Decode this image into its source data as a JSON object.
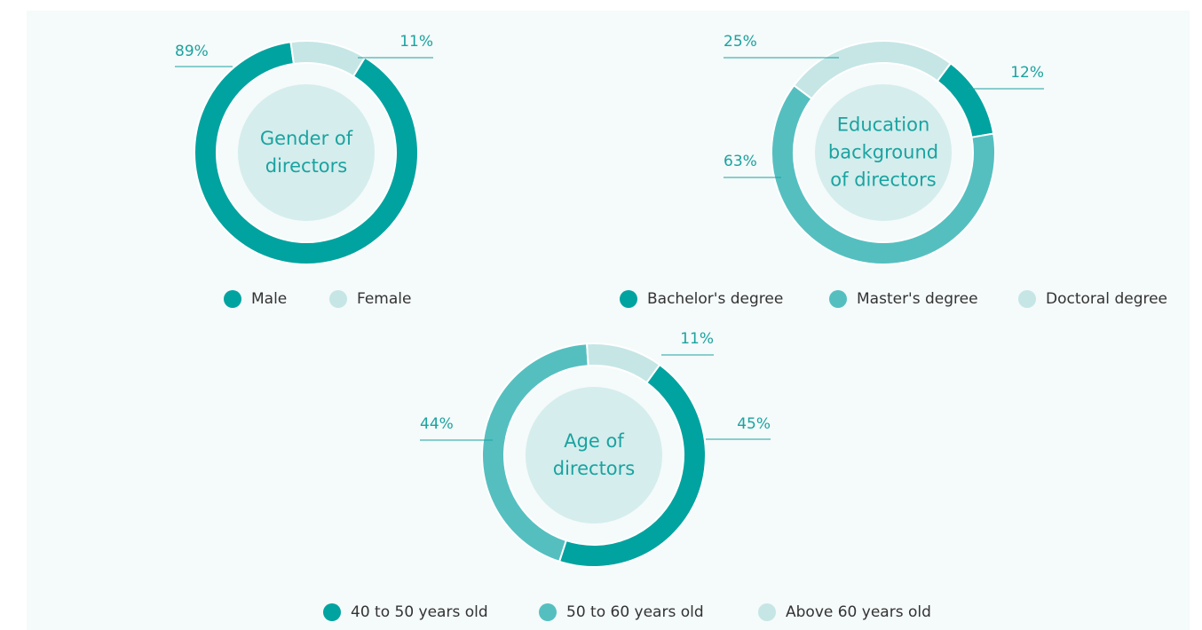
{
  "chart_data": [
    {
      "type": "pie",
      "title": "Gender of directors",
      "categories": [
        "Male",
        "Female"
      ],
      "values": [
        89,
        11
      ],
      "value_labels": [
        "89%",
        "11%"
      ],
      "colors": [
        "#00a3a0",
        "#c6e6e6"
      ]
    },
    {
      "type": "pie",
      "title": "Education background of directors",
      "categories": [
        "Bachelor's degree",
        "Master's degree",
        "Doctoral degree"
      ],
      "values": [
        12,
        63,
        25
      ],
      "value_labels": [
        "12%",
        "63%",
        "25%"
      ],
      "colors": [
        "#00a3a0",
        "#55bfc0",
        "#c6e6e6"
      ]
    },
    {
      "type": "pie",
      "title": "Age of directors",
      "categories": [
        "40 to 50 years old",
        "50 to 60 years old",
        "Above 60 years old"
      ],
      "values": [
        45,
        44,
        11
      ],
      "value_labels": [
        "45%",
        "44%",
        "11%"
      ],
      "colors": [
        "#00a3a0",
        "#55bfc0",
        "#c6e6e6"
      ]
    }
  ]
}
